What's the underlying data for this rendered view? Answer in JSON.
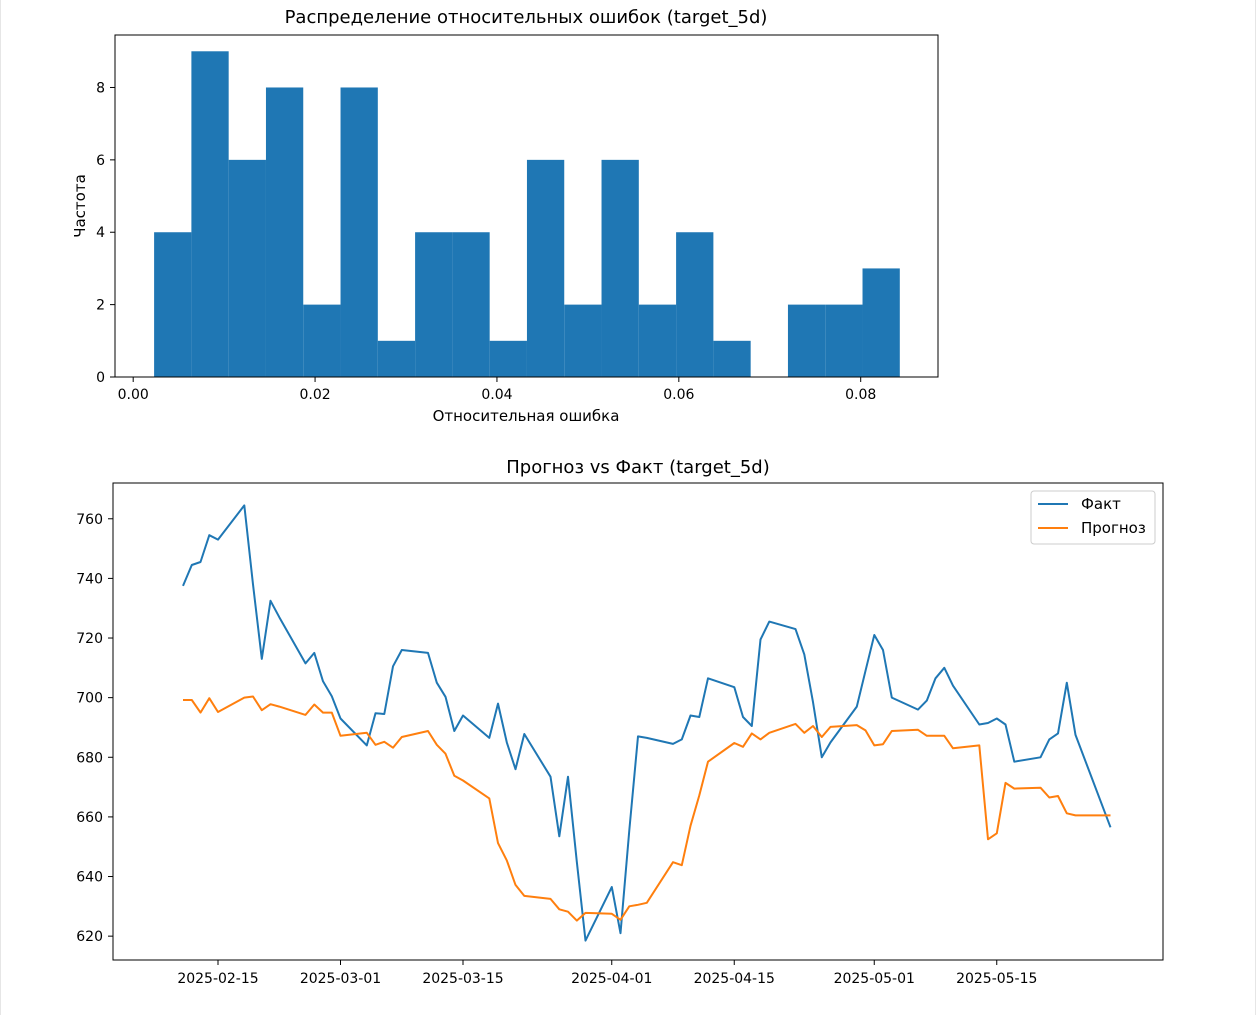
{
  "chart_data": [
    {
      "type": "bar",
      "title": "Распределение относительных ошибок (target_5d)",
      "xlabel": "Относительная ошибка",
      "ylabel": "Частота",
      "xlim": [
        -0.002,
        0.0885
      ],
      "ylim": [
        0,
        9.45
      ],
      "x_ticks": [
        "0.00",
        "0.02",
        "0.04",
        "0.06",
        "0.08"
      ],
      "x_tick_values": [
        0.0,
        0.02,
        0.04,
        0.06,
        0.08
      ],
      "y_ticks": [
        "0",
        "2",
        "4",
        "6",
        "8"
      ],
      "y_tick_values": [
        0,
        2,
        4,
        6,
        8
      ],
      "bin_edges": [
        0.0023,
        0.0064,
        0.0105,
        0.0146,
        0.0187,
        0.0228,
        0.0269,
        0.031,
        0.0351,
        0.0392,
        0.0433,
        0.0474,
        0.0515,
        0.0556,
        0.0597,
        0.0638,
        0.0679,
        0.072,
        0.0761,
        0.0802,
        0.0843
      ],
      "counts": [
        4,
        9,
        6,
        8,
        2,
        8,
        1,
        4,
        4,
        1,
        6,
        2,
        6,
        2,
        4,
        1,
        0,
        2,
        2,
        3
      ],
      "color": "#1f77b4",
      "grid": false
    },
    {
      "type": "line",
      "title": "Прогноз vs Факт (target_5d)",
      "xlabel": "",
      "ylabel": "",
      "xlim": [
        "2025-02-03",
        "2025-06-03"
      ],
      "ylim": [
        612,
        772
      ],
      "x_ticks": [
        "2025-02-15",
        "2025-03-01",
        "2025-03-15",
        "2025-04-01",
        "2025-04-15",
        "2025-05-01",
        "2025-05-15"
      ],
      "y_ticks": [
        "620",
        "640",
        "660",
        "680",
        "700",
        "720",
        "740",
        "760"
      ],
      "y_tick_values": [
        620,
        640,
        660,
        680,
        700,
        720,
        740,
        760
      ],
      "legend_position": "top-right",
      "grid": false,
      "x": [
        "2025-02-11",
        "2025-02-12",
        "2025-02-13",
        "2025-02-14",
        "2025-02-15",
        "2025-02-18",
        "2025-02-19",
        "2025-02-20",
        "2025-02-21",
        "2025-02-22",
        "2025-02-25",
        "2025-02-26",
        "2025-02-27",
        "2025-02-28",
        "2025-03-01",
        "2025-03-04",
        "2025-03-05",
        "2025-03-06",
        "2025-03-07",
        "2025-03-08",
        "2025-03-11",
        "2025-03-12",
        "2025-03-13",
        "2025-03-14",
        "2025-03-15",
        "2025-03-18",
        "2025-03-19",
        "2025-03-20",
        "2025-03-21",
        "2025-03-22",
        "2025-03-25",
        "2025-03-26",
        "2025-03-27",
        "2025-03-28",
        "2025-03-29",
        "2025-04-01",
        "2025-04-02",
        "2025-04-03",
        "2025-04-04",
        "2025-04-05",
        "2025-04-08",
        "2025-04-09",
        "2025-04-10",
        "2025-04-11",
        "2025-04-12",
        "2025-04-15",
        "2025-04-16",
        "2025-04-17",
        "2025-04-18",
        "2025-04-19",
        "2025-04-22",
        "2025-04-23",
        "2025-04-24",
        "2025-04-25",
        "2025-04-26",
        "2025-04-29",
        "2025-04-30",
        "2025-05-01",
        "2025-05-02",
        "2025-05-03",
        "2025-05-06",
        "2025-05-07",
        "2025-05-08",
        "2025-05-09",
        "2025-05-10",
        "2025-05-13",
        "2025-05-14",
        "2025-05-15",
        "2025-05-16",
        "2025-05-17",
        "2025-05-20",
        "2025-05-21",
        "2025-05-22",
        "2025-05-23",
        "2025-05-24",
        "2025-05-28"
      ],
      "series": [
        {
          "name": "Факт",
          "color": "#1f77b4",
          "values": [
            737.5,
            744.5,
            745.5,
            754.5,
            753,
            764.5,
            738,
            713,
            732.5,
            727,
            711.5,
            715,
            705.5,
            700.5,
            693,
            684,
            694.8,
            694.5,
            710.5,
            716,
            715,
            705,
            700.3,
            688.8,
            694,
            686.5,
            698,
            685,
            676,
            687.8,
            673.5,
            653.5,
            673.5,
            645,
            618.5,
            636.5,
            621,
            655.5,
            687,
            686.5,
            684.5,
            686,
            694,
            693.5,
            706.5,
            703.5,
            693.5,
            690.5,
            719.5,
            725.5,
            723,
            714.5,
            698.5,
            680,
            685,
            697,
            709,
            721,
            716,
            700,
            696,
            699,
            706.5,
            710,
            704,
            691,
            691.5,
            693,
            691,
            678.5,
            680,
            686,
            688,
            705,
            687.5,
            656.5
          ]
        },
        {
          "name": "Прогноз",
          "color": "#ff7f0e",
          "values": [
            699.2,
            699.2,
            695,
            699.8,
            695.2,
            700,
            700.4,
            695.8,
            697.8,
            697,
            694.2,
            697.7,
            695,
            695,
            687.2,
            688.2,
            684.2,
            685.2,
            683.2,
            686.8,
            688.8,
            684.2,
            681.2,
            673.8,
            672.2,
            666.2,
            651.2,
            645.4,
            637.2,
            633.5,
            632.5,
            629,
            628.2,
            625.2,
            627.8,
            627.5,
            625.5,
            630,
            630.5,
            631.2,
            644.8,
            643.8,
            657,
            667.2,
            678.5,
            684.8,
            683.5,
            688,
            686,
            688.2,
            691.2,
            688.2,
            690.5,
            686.8,
            690.2,
            690.8,
            689,
            684,
            684.4,
            688.8,
            689.2,
            687.2,
            687.2,
            687.2,
            683,
            684,
            652.5,
            654.5,
            671.4,
            669.5,
            669.8,
            666.5,
            667,
            661.2,
            660.5,
            660.5
          ]
        }
      ]
    }
  ]
}
